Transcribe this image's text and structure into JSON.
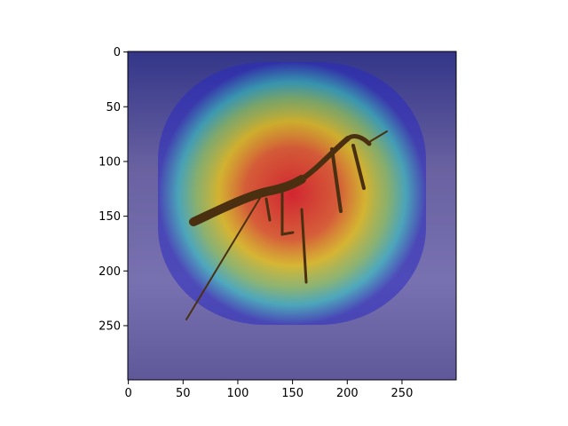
{
  "chart_data": {
    "type": "heatmap",
    "title": "",
    "xlabel": "",
    "ylabel": "",
    "xlim": [
      0,
      299
    ],
    "ylim": [
      299,
      0
    ],
    "xticks": [
      0,
      50,
      100,
      150,
      200,
      250
    ],
    "yticks": [
      0,
      50,
      100,
      150,
      200,
      250
    ],
    "xtick_labels": [
      "0",
      "50",
      "100",
      "150",
      "200",
      "250"
    ],
    "ytick_labels": [
      "0",
      "50",
      "100",
      "150",
      "200",
      "250"
    ],
    "grid": false,
    "legend": "none",
    "colormap": "jet",
    "overlay_alpha": 0.5,
    "background_image": "praying-mantis-on-sand",
    "heat_peak": {
      "x": 115,
      "y": 110,
      "value": 1.0
    },
    "heat_region": {
      "x_range": [
        60,
        200
      ],
      "y_range": [
        70,
        170
      ],
      "level": "high"
    }
  },
  "colors": {
    "jet_low": "#1a1ab4",
    "jet_mid": "#2ee0a0",
    "jet_high": "#ffd400",
    "jet_max": "#e5201c",
    "sand": "#b8aaa2",
    "mantis": "#5a3a14"
  }
}
